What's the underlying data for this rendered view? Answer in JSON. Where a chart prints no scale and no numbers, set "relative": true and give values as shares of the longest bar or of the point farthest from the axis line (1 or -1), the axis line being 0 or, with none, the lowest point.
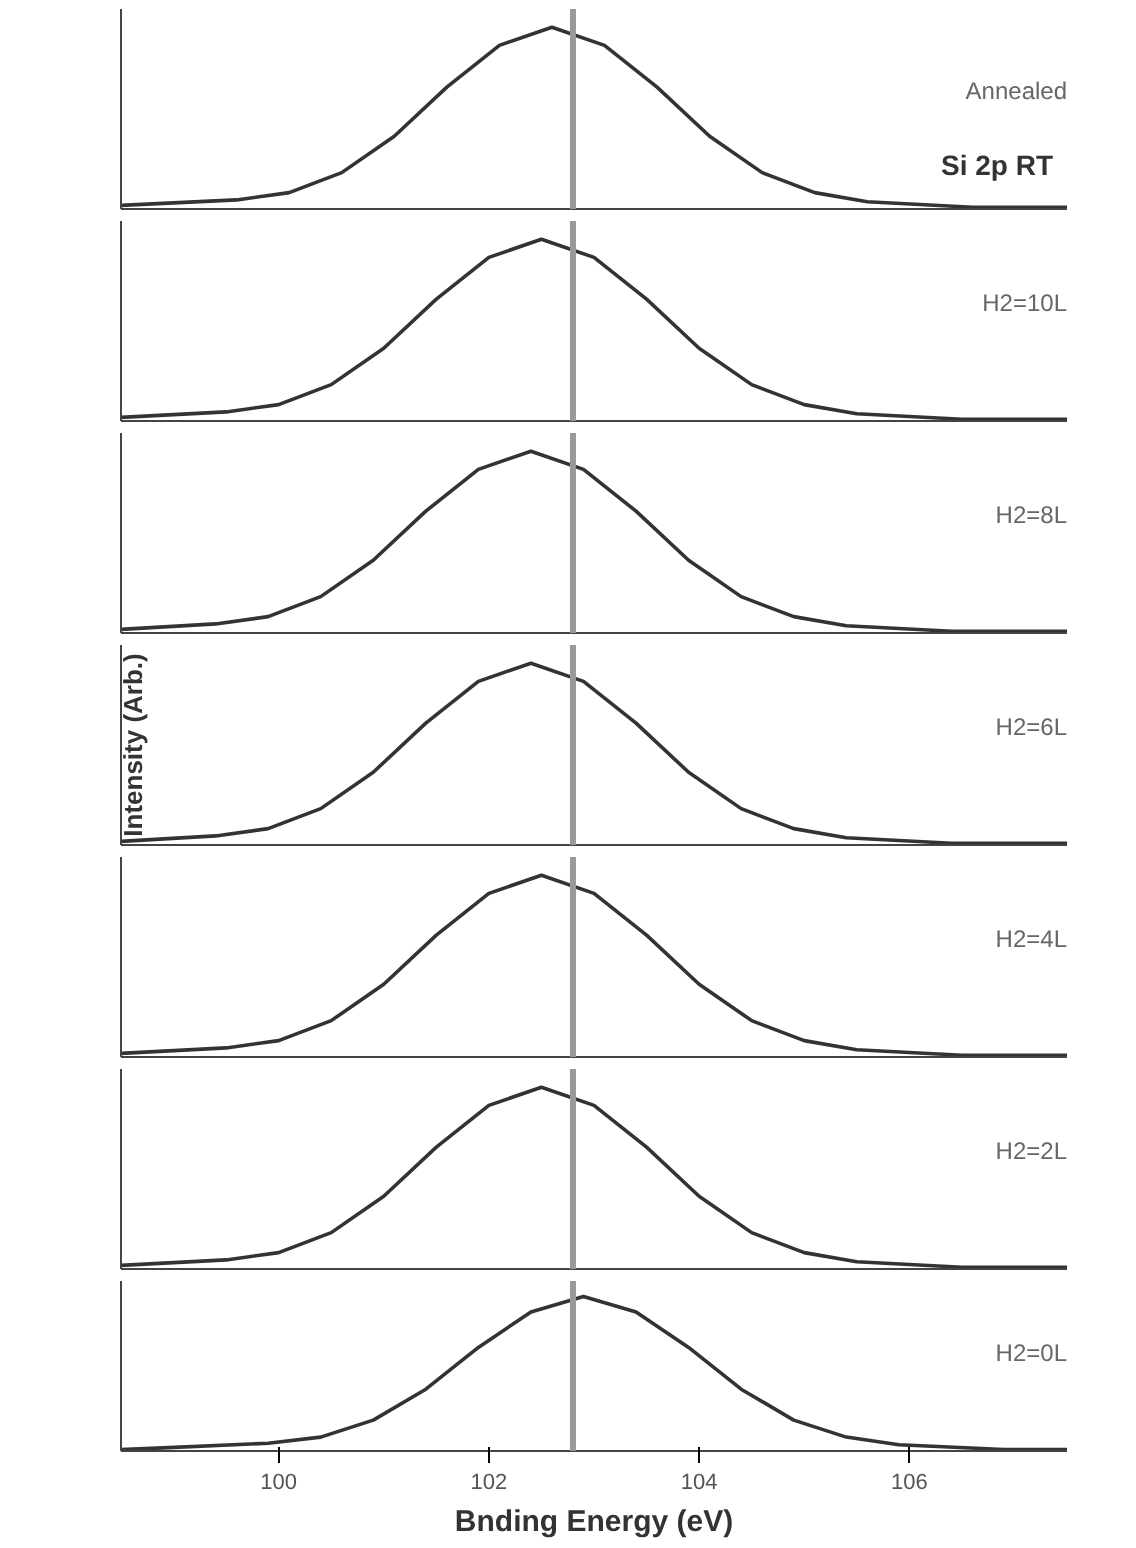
{
  "chart_data": [
    {
      "type": "line",
      "title": "Si 2p RT",
      "relative": true,
      "annotations": [
        "Annealed"
      ],
      "xlim": [
        98.5,
        107.5
      ],
      "tick_labels": false,
      "ref_lines": [
        {
          "axis": "x",
          "value": 102.8,
          "color": "#999999"
        }
      ],
      "x": [
        98.5,
        99.6,
        100.1,
        100.6,
        101.1,
        101.6,
        102.1,
        102.6,
        103.1,
        103.6,
        104.1,
        104.6,
        105.1,
        105.6,
        106.6,
        107.5
      ],
      "series": [
        {
          "color": "#333333",
          "values": [
            0.02,
            0.05,
            0.09,
            0.2,
            0.4,
            0.67,
            0.9,
            1,
            0.9,
            0.67,
            0.4,
            0.2,
            0.09,
            0.04,
            0.01,
            0.01
          ]
        }
      ]
    },
    {
      "type": "line",
      "relative": true,
      "annotations": [
        "H2=10L"
      ],
      "xlim": [
        98.5,
        107.5
      ],
      "tick_labels": false,
      "ref_lines": [
        {
          "axis": "x",
          "value": 102.8,
          "color": "#999999"
        }
      ],
      "x": [
        98.5,
        99.5,
        100,
        100.5,
        101,
        101.5,
        102,
        102.5,
        103,
        103.5,
        104,
        104.5,
        105,
        105.5,
        106.5,
        107.5
      ],
      "series": [
        {
          "color": "#333333",
          "values": [
            0.02,
            0.05,
            0.09,
            0.2,
            0.4,
            0.67,
            0.9,
            1,
            0.9,
            0.67,
            0.4,
            0.2,
            0.09,
            0.04,
            0.01,
            0.01
          ]
        }
      ]
    },
    {
      "type": "line",
      "relative": true,
      "annotations": [
        "H2=8L"
      ],
      "xlim": [
        98.5,
        107.5
      ],
      "tick_labels": false,
      "ref_lines": [
        {
          "axis": "x",
          "value": 102.8,
          "color": "#999999"
        }
      ],
      "x": [
        98.5,
        99.4,
        99.9,
        100.4,
        100.9,
        101.4,
        101.9,
        102.4,
        102.9,
        103.4,
        103.9,
        104.4,
        104.9,
        105.4,
        106.4,
        107.5
      ],
      "series": [
        {
          "color": "#333333",
          "values": [
            0.02,
            0.05,
            0.09,
            0.2,
            0.4,
            0.67,
            0.9,
            1,
            0.9,
            0.67,
            0.4,
            0.2,
            0.09,
            0.04,
            0.01,
            0.01
          ]
        }
      ]
    },
    {
      "type": "line",
      "relative": true,
      "ylabel": "Intensity (Arb.)",
      "annotations": [
        "H2=6L"
      ],
      "xlim": [
        98.5,
        107.5
      ],
      "tick_labels": false,
      "ref_lines": [
        {
          "axis": "x",
          "value": 102.8,
          "color": "#999999"
        }
      ],
      "x": [
        98.5,
        99.4,
        99.9,
        100.4,
        100.9,
        101.4,
        101.9,
        102.4,
        102.9,
        103.4,
        103.9,
        104.4,
        104.9,
        105.4,
        106.4,
        107.5
      ],
      "series": [
        {
          "color": "#333333",
          "values": [
            0.02,
            0.05,
            0.09,
            0.2,
            0.4,
            0.67,
            0.9,
            1,
            0.9,
            0.67,
            0.4,
            0.2,
            0.09,
            0.04,
            0.01,
            0.01
          ]
        }
      ]
    },
    {
      "type": "line",
      "relative": true,
      "annotations": [
        "H2=4L"
      ],
      "xlim": [
        98.5,
        107.5
      ],
      "tick_labels": false,
      "ref_lines": [
        {
          "axis": "x",
          "value": 102.8,
          "color": "#999999"
        }
      ],
      "x": [
        98.5,
        99.5,
        100,
        100.5,
        101,
        101.5,
        102,
        102.5,
        103,
        103.5,
        104,
        104.5,
        105,
        105.5,
        106.5,
        107.5
      ],
      "series": [
        {
          "color": "#333333",
          "values": [
            0.02,
            0.05,
            0.09,
            0.2,
            0.4,
            0.67,
            0.9,
            1,
            0.9,
            0.67,
            0.4,
            0.2,
            0.09,
            0.04,
            0.01,
            0.01
          ]
        }
      ]
    },
    {
      "type": "line",
      "relative": true,
      "annotations": [
        "H2=2L"
      ],
      "xlim": [
        98.5,
        107.5
      ],
      "tick_labels": false,
      "ref_lines": [
        {
          "axis": "x",
          "value": 102.8,
          "color": "#999999"
        }
      ],
      "x": [
        98.5,
        99.5,
        100,
        100.5,
        101,
        101.5,
        102,
        102.5,
        103,
        103.5,
        104,
        104.5,
        105,
        105.5,
        106.5,
        107.5
      ],
      "series": [
        {
          "color": "#333333",
          "values": [
            0.02,
            0.05,
            0.09,
            0.2,
            0.4,
            0.67,
            0.9,
            1,
            0.9,
            0.67,
            0.4,
            0.2,
            0.09,
            0.04,
            0.01,
            0.01
          ]
        }
      ]
    },
    {
      "type": "line",
      "relative": true,
      "xlabel": "Bnding Energy (eV)",
      "annotations": [
        "H2=0L"
      ],
      "xlim": [
        98.5,
        107.5
      ],
      "xticks": [
        100,
        102,
        104,
        106
      ],
      "tick_labels": "x",
      "ref_lines": [
        {
          "axis": "x",
          "value": 102.8,
          "color": "#999999"
        }
      ],
      "x": [
        98.5,
        98.9,
        99.9,
        100.4,
        100.9,
        101.4,
        101.9,
        102.4,
        102.9,
        103.4,
        103.9,
        104.4,
        104.9,
        105.4,
        105.9,
        106.9,
        107.5
      ],
      "series": [
        {
          "color": "#333333",
          "values": [
            0.01,
            0.02,
            0.05,
            0.09,
            0.2,
            0.4,
            0.67,
            0.9,
            1,
            0.9,
            0.67,
            0.4,
            0.2,
            0.09,
            0.04,
            0.01,
            0.01
          ]
        }
      ]
    }
  ]
}
